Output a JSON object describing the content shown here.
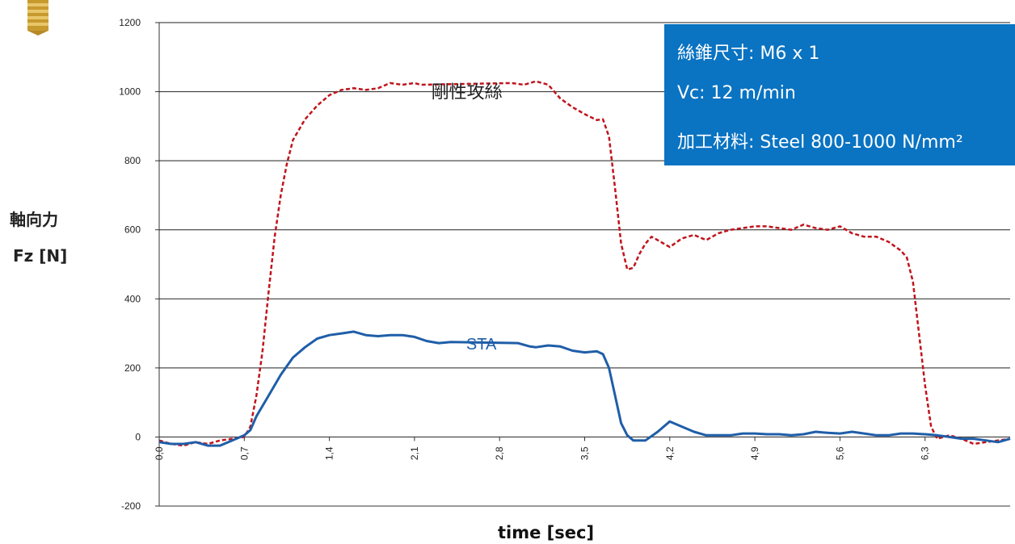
{
  "labels": {
    "ylabel_cn": "軸向力",
    "ylabel": "Fz [N]",
    "xlabel": "time [sec]"
  },
  "info": {
    "line1": "絲錐尺寸: M6 x 1",
    "line2": "Vc: 12 m/min",
    "line3": "加工材料: Steel 800-1000 N/mm²"
  },
  "colors": {
    "red_series": "#c0141c",
    "blue_series": "#1f5ea8",
    "info_box": "#0a73c2"
  },
  "chart_data": {
    "type": "line",
    "xlabel": "time [sec]",
    "ylabel": "Fz [N]",
    "xlim": [
      0.0,
      7.0
    ],
    "ylim": [
      -200,
      1200
    ],
    "yticks": [
      1200,
      1000,
      800,
      600,
      400,
      200,
      0,
      -200
    ],
    "xticks": [
      "0,0",
      "0,7",
      "1,4",
      "2,1",
      "2,8",
      "3,5",
      "4,2",
      "4,9",
      "5,6",
      "6,3"
    ],
    "xtick_values": [
      0.0,
      0.7,
      1.4,
      2.1,
      2.8,
      3.5,
      4.2,
      4.9,
      5.6,
      6.3
    ],
    "grid": "horizontal",
    "series": [
      {
        "name": "剛性攻絲",
        "style": "dashed",
        "color": "#c0141c",
        "points": [
          [
            0.0,
            -10
          ],
          [
            0.1,
            -20
          ],
          [
            0.2,
            -25
          ],
          [
            0.3,
            -15
          ],
          [
            0.4,
            -20
          ],
          [
            0.5,
            -10
          ],
          [
            0.6,
            -5
          ],
          [
            0.7,
            0
          ],
          [
            0.75,
            30
          ],
          [
            0.8,
            120
          ],
          [
            0.85,
            250
          ],
          [
            0.9,
            420
          ],
          [
            0.95,
            580
          ],
          [
            1.0,
            700
          ],
          [
            1.05,
            790
          ],
          [
            1.1,
            860
          ],
          [
            1.2,
            920
          ],
          [
            1.3,
            960
          ],
          [
            1.4,
            990
          ],
          [
            1.5,
            1005
          ],
          [
            1.6,
            1010
          ],
          [
            1.7,
            1005
          ],
          [
            1.8,
            1010
          ],
          [
            1.9,
            1025
          ],
          [
            2.0,
            1020
          ],
          [
            2.1,
            1025
          ],
          [
            2.15,
            1020
          ],
          [
            2.9,
            1025
          ],
          [
            3.0,
            1020
          ],
          [
            3.1,
            1030
          ],
          [
            3.2,
            1020
          ],
          [
            3.3,
            980
          ],
          [
            3.4,
            955
          ],
          [
            3.5,
            935
          ],
          [
            3.6,
            918
          ],
          [
            3.65,
            920
          ],
          [
            3.7,
            870
          ],
          [
            3.75,
            720
          ],
          [
            3.8,
            560
          ],
          [
            3.85,
            485
          ],
          [
            3.9,
            490
          ],
          [
            3.95,
            530
          ],
          [
            4.0,
            560
          ],
          [
            4.05,
            580
          ],
          [
            4.1,
            570
          ],
          [
            4.2,
            550
          ],
          [
            4.3,
            575
          ],
          [
            4.4,
            585
          ],
          [
            4.5,
            570
          ],
          [
            4.6,
            590
          ],
          [
            4.7,
            600
          ],
          [
            4.8,
            605
          ],
          [
            4.9,
            610
          ],
          [
            5.0,
            610
          ],
          [
            5.1,
            605
          ],
          [
            5.2,
            600
          ],
          [
            5.3,
            615
          ],
          [
            5.4,
            605
          ],
          [
            5.5,
            600
          ],
          [
            5.6,
            610
          ],
          [
            5.7,
            590
          ],
          [
            5.8,
            580
          ],
          [
            5.9,
            580
          ],
          [
            6.0,
            565
          ],
          [
            6.1,
            540
          ],
          [
            6.15,
            520
          ],
          [
            6.2,
            450
          ],
          [
            6.25,
            300
          ],
          [
            6.3,
            150
          ],
          [
            6.35,
            30
          ],
          [
            6.4,
            -5
          ],
          [
            6.5,
            5
          ],
          [
            6.6,
            -5
          ],
          [
            6.7,
            -20
          ],
          [
            6.8,
            -15
          ],
          [
            6.9,
            -10
          ],
          [
            7.0,
            -5
          ]
        ]
      },
      {
        "name": "STA",
        "style": "solid",
        "color": "#1f5ea8",
        "points": [
          [
            0.0,
            -15
          ],
          [
            0.1,
            -20
          ],
          [
            0.2,
            -20
          ],
          [
            0.3,
            -15
          ],
          [
            0.4,
            -25
          ],
          [
            0.5,
            -25
          ],
          [
            0.6,
            -10
          ],
          [
            0.7,
            5
          ],
          [
            0.75,
            20
          ],
          [
            0.8,
            60
          ],
          [
            0.9,
            120
          ],
          [
            1.0,
            180
          ],
          [
            1.1,
            230
          ],
          [
            1.2,
            260
          ],
          [
            1.3,
            285
          ],
          [
            1.4,
            295
          ],
          [
            1.5,
            300
          ],
          [
            1.6,
            305
          ],
          [
            1.7,
            295
          ],
          [
            1.8,
            292
          ],
          [
            1.9,
            295
          ],
          [
            2.0,
            295
          ],
          [
            2.1,
            290
          ],
          [
            2.2,
            278
          ],
          [
            2.3,
            272
          ],
          [
            2.4,
            275
          ],
          [
            2.95,
            272
          ],
          [
            3.05,
            262
          ],
          [
            3.1,
            260
          ],
          [
            3.2,
            265
          ],
          [
            3.3,
            262
          ],
          [
            3.4,
            250
          ],
          [
            3.5,
            245
          ],
          [
            3.6,
            248
          ],
          [
            3.65,
            240
          ],
          [
            3.7,
            200
          ],
          [
            3.75,
            120
          ],
          [
            3.8,
            40
          ],
          [
            3.85,
            5
          ],
          [
            3.9,
            -10
          ],
          [
            4.0,
            -10
          ],
          [
            4.1,
            15
          ],
          [
            4.2,
            45
          ],
          [
            4.3,
            30
          ],
          [
            4.4,
            15
          ],
          [
            4.5,
            5
          ],
          [
            4.6,
            5
          ],
          [
            4.7,
            5
          ],
          [
            4.8,
            10
          ],
          [
            4.9,
            10
          ],
          [
            5.0,
            8
          ],
          [
            5.1,
            8
          ],
          [
            5.2,
            5
          ],
          [
            5.3,
            8
          ],
          [
            5.4,
            15
          ],
          [
            5.5,
            12
          ],
          [
            5.6,
            10
          ],
          [
            5.7,
            15
          ],
          [
            5.8,
            10
          ],
          [
            5.9,
            5
          ],
          [
            6.0,
            5
          ],
          [
            6.1,
            10
          ],
          [
            6.2,
            10
          ],
          [
            6.3,
            8
          ],
          [
            6.4,
            5
          ],
          [
            6.5,
            0
          ],
          [
            6.6,
            -5
          ],
          [
            6.7,
            -5
          ],
          [
            6.8,
            -10
          ],
          [
            6.9,
            -15
          ],
          [
            7.0,
            -5
          ]
        ]
      }
    ]
  }
}
